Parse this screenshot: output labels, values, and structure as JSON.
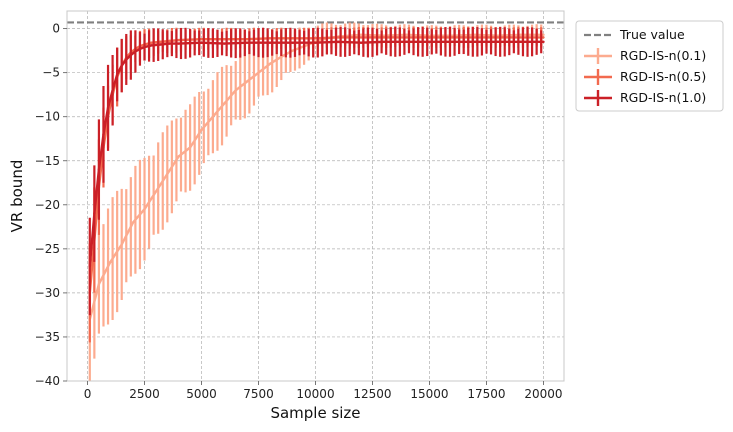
{
  "chart_data": {
    "type": "line",
    "xlabel": "Sample size",
    "ylabel": "VR bound",
    "xlim": [
      -900,
      20900
    ],
    "ylim": [
      -40,
      2
    ],
    "xticks": [
      0,
      2500,
      5000,
      7500,
      10000,
      12500,
      15000,
      17500,
      20000
    ],
    "yticks": [
      -40,
      -35,
      -30,
      -25,
      -20,
      -15,
      -10,
      -5,
      0
    ],
    "xtick_labels": [
      "0",
      "2500",
      "5000",
      "7500",
      "10000",
      "12500",
      "15000",
      "17500",
      "20000"
    ],
    "ytick_labels": [
      "−40",
      "−35",
      "−30",
      "−25",
      "−20",
      "−15",
      "−10",
      "−5",
      "0"
    ],
    "grid": true,
    "legend_position": "outside upper-right",
    "reference_line": {
      "name": "True value",
      "y": 0.7,
      "color": "#808080",
      "style": "dashed"
    },
    "series": [
      {
        "name": "RGD-IS-n(0.1)",
        "color": "#fcab8f",
        "x": [
          100,
          500,
          1000,
          1500,
          2000,
          2500,
          3000,
          3500,
          4000,
          4500,
          5000,
          5500,
          6000,
          6500,
          7000,
          7500,
          8000,
          8500,
          9000,
          9500,
          10000,
          10500,
          11000,
          11500,
          12000,
          13000,
          14000,
          15000,
          16000,
          17000,
          18000,
          19000,
          20000
        ],
        "y": [
          -33,
          -29,
          -26.5,
          -24.5,
          -22,
          -20.5,
          -18.5,
          -16.5,
          -14.5,
          -13.5,
          -11.5,
          -10,
          -8.5,
          -7,
          -6,
          -5,
          -4,
          -3.2,
          -2.5,
          -2,
          -1.5,
          -1.1,
          -0.9,
          -0.8,
          -0.7,
          -0.8,
          -0.7,
          -0.8,
          -0.8,
          -0.7,
          -0.8,
          -0.7,
          -0.7
        ],
        "err": [
          7,
          7,
          7,
          7,
          6.5,
          6,
          6,
          5.5,
          5.5,
          5,
          5,
          4.5,
          4.5,
          4,
          4,
          3.5,
          3.5,
          3,
          2.5,
          2.2,
          2,
          1.8,
          1.6,
          1.5,
          1.4,
          1.3,
          1.2,
          1.2,
          1.2,
          1.2,
          1.2,
          1.2,
          1.2
        ]
      },
      {
        "name": "RGD-IS-n(0.5)",
        "color": "#f26a4f",
        "x": [
          100,
          300,
          500,
          700,
          900,
          1100,
          1300,
          1500,
          1700,
          1900,
          2100,
          2300,
          2500,
          2800,
          3200,
          3600,
          4000,
          5000,
          6000,
          7000,
          8000,
          9000,
          10000,
          11000,
          12000,
          13000,
          14000,
          15000,
          16000,
          17000,
          18000,
          19000,
          20000
        ],
        "y": [
          -30,
          -24,
          -18,
          -13.5,
          -10,
          -7.5,
          -5.5,
          -4.2,
          -3.3,
          -2.7,
          -2.3,
          -2.0,
          -1.8,
          -1.6,
          -1.5,
          -1.4,
          -1.3,
          -1.2,
          -1.2,
          -1.2,
          -1.1,
          -1.1,
          -1.1,
          -1.0,
          -1.0,
          -1.0,
          -1.0,
          -1.0,
          -1.0,
          -1.0,
          -1.0,
          -1.0,
          -1.0
        ],
        "err": [
          6,
          6,
          5.5,
          5,
          4.5,
          4,
          3.5,
          3,
          2.5,
          2.2,
          2,
          2,
          1.8,
          1.6,
          1.5,
          1.5,
          1.4,
          1.3,
          1.3,
          1.3,
          1.2,
          1.2,
          1.2,
          1.2,
          1.2,
          1.2,
          1.2,
          1.2,
          1.2,
          1.2,
          1.2,
          1.2,
          1.2
        ]
      },
      {
        "name": "RGD-IS-n(1.0)",
        "color": "#cb2027",
        "x": [
          100,
          300,
          500,
          700,
          900,
          1100,
          1300,
          1500,
          1700,
          1900,
          2100,
          2300,
          2500,
          2800,
          3200,
          3600,
          4000,
          5000,
          6000,
          7000,
          8000,
          9000,
          10000,
          11000,
          12000,
          13000,
          14000,
          15000,
          16000,
          17000,
          18000,
          19000,
          20000
        ],
        "y": [
          -27,
          -21,
          -16,
          -12,
          -9,
          -7,
          -5.2,
          -4.2,
          -3.5,
          -3.0,
          -2.6,
          -2.3,
          -2.1,
          -1.9,
          -1.8,
          -1.7,
          -1.7,
          -1.6,
          -1.7,
          -1.6,
          -1.6,
          -1.6,
          -1.6,
          -1.5,
          -1.6,
          -1.5,
          -1.5,
          -1.5,
          -1.5,
          -1.5,
          -1.5,
          -1.5,
          -1.5
        ],
        "err": [
          7,
          6.5,
          6,
          5.5,
          5,
          4.5,
          4,
          3.5,
          3,
          2.8,
          2.5,
          2.2,
          2,
          2,
          1.8,
          1.8,
          1.8,
          1.7,
          1.7,
          1.7,
          1.7,
          1.7,
          1.7,
          1.7,
          1.7,
          1.7,
          1.7,
          1.7,
          1.7,
          1.7,
          1.7,
          1.7,
          1.7
        ]
      }
    ]
  }
}
